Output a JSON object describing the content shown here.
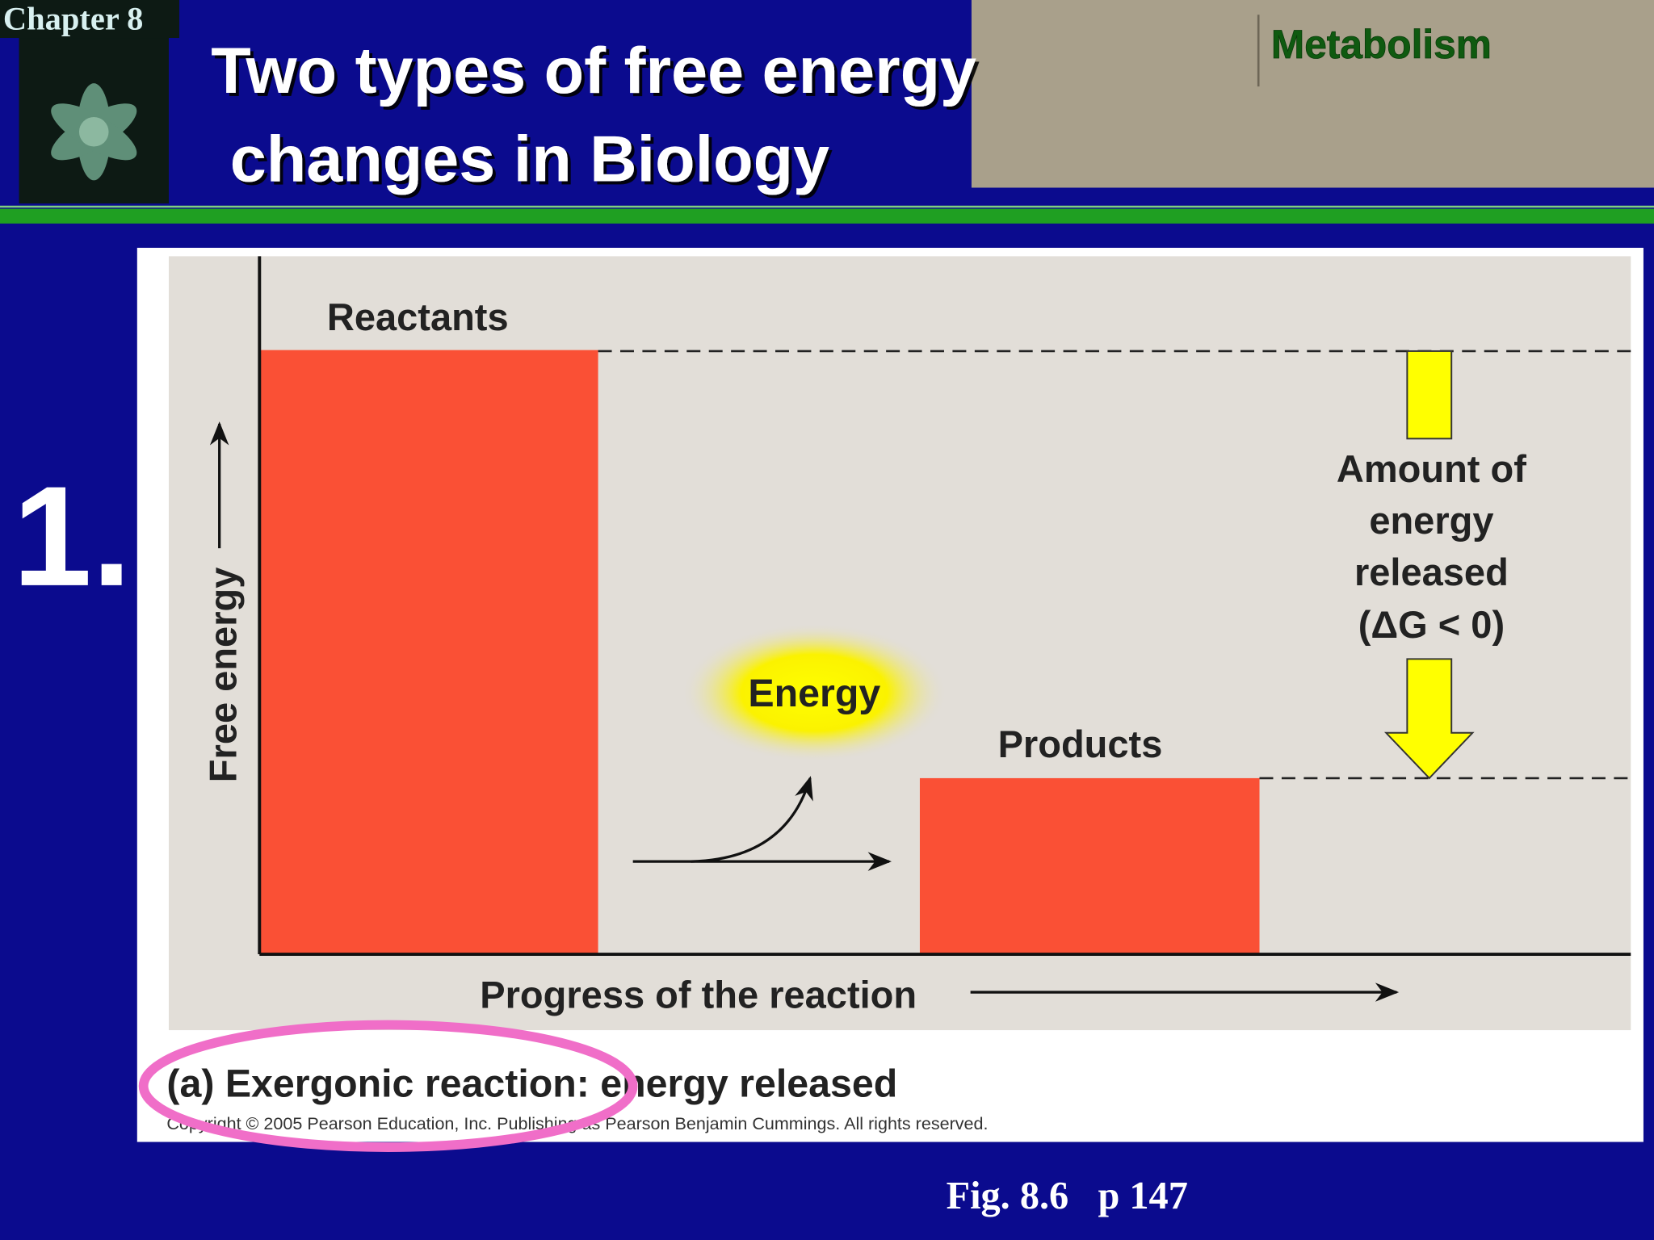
{
  "header": {
    "chapter": "Chapter 8",
    "title_lines": [
      "Two types of free energy",
      "changes in Biology"
    ],
    "section": "Metabolism"
  },
  "number": "1.",
  "figure": {
    "reactants": "Reactants",
    "products": "Products",
    "energy": "Energy",
    "released_lines": [
      "Amount of",
      "energy",
      "released",
      "(ΔG < 0)"
    ],
    "y_axis": "Free energy",
    "x_axis": "Progress of the reaction",
    "caption": "(a) Exergonic reaction: energy released",
    "copyright": "Copyright © 2005 Pearson Education, Inc. Publishing as Pearson Benjamin Cummings. All rights reserved."
  },
  "footer": "Fig. 8.6   p 147"
}
